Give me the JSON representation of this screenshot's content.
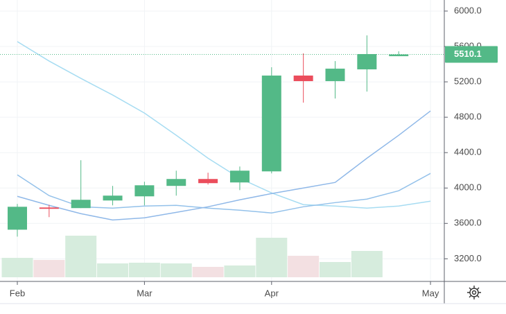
{
  "chart_data": {
    "type": "candlestick",
    "categories": [
      "Feb",
      null,
      null,
      null,
      "Mar",
      null,
      null,
      null,
      "Apr",
      null,
      null,
      null,
      null,
      "May"
    ],
    "open": [
      3529,
      3780,
      3773,
      3859,
      3906,
      4024,
      4102,
      4063,
      4188,
      5271,
      5208,
      5341,
      5490,
      null
    ],
    "high": [
      3820,
      3810,
      4314,
      4024,
      4071,
      4196,
      4173,
      4243,
      5365,
      5522,
      5435,
      5725,
      5545,
      null
    ],
    "low": [
      3451,
      3671,
      3773,
      3804,
      3804,
      3914,
      4039,
      3976,
      4165,
      4965,
      5012,
      5090,
      5490,
      null
    ],
    "close": [
      3788,
      3765,
      3867,
      3914,
      4031,
      4102,
      4055,
      4196,
      5271,
      5208,
      5349,
      5514,
      5510.1,
      null
    ],
    "volume": [
      28,
      25,
      60,
      20,
      21,
      20,
      15,
      17,
      57,
      31,
      22,
      38,
      null,
      null
    ],
    "up_color": "#53b987",
    "down_color": "#eb4d5c",
    "volume_up_color": "#d6ecdd",
    "volume_down_color": "#f3e0e2",
    "series": [
      {
        "color": "#a6dcf2",
        "values": [
          5655,
          5435,
          5239,
          5051,
          4847,
          4596,
          4337,
          4110,
          3945,
          3812,
          3796,
          3773,
          3796,
          3851
        ]
      },
      {
        "color": "#93c1ea",
        "values": [
          4149,
          3914,
          3788,
          3773,
          3796,
          3804,
          3773,
          3749,
          3718,
          3788,
          3835,
          3875,
          3969,
          4165
        ]
      },
      {
        "color": "#8fb8e8",
        "values": [
          3906,
          3804,
          3710,
          3639,
          3663,
          3725,
          3788,
          3867,
          3937,
          4000,
          4063,
          4337,
          4596,
          4871
        ]
      }
    ],
    "last_price": 5510.1,
    "ylim": [
      2960,
      6125
    ],
    "yticks": [
      {
        "value": 3200,
        "label": "3200.0"
      },
      {
        "value": 3600,
        "label": "3600.0"
      },
      {
        "value": 4000,
        "label": "4000.0"
      },
      {
        "value": 4400,
        "label": "4400.0"
      },
      {
        "value": 4800,
        "label": "4800.0"
      },
      {
        "value": 5200,
        "label": "5200.0"
      },
      {
        "value": 5600,
        "label": "5600.0"
      },
      {
        "value": 6000,
        "label": "6000.0"
      }
    ],
    "grid": true
  }
}
